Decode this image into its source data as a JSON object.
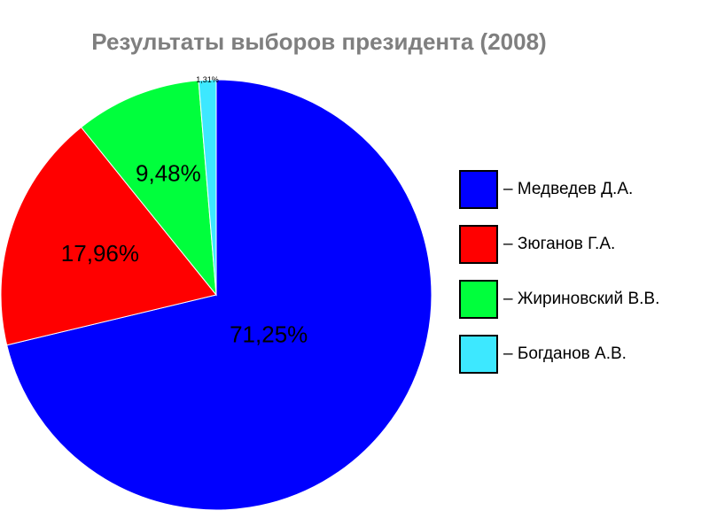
{
  "chart_data": {
    "type": "pie",
    "title": "Результаты выборов президента (2008)",
    "slices": [
      {
        "name": "Медведев Д.А.",
        "value": 71.25,
        "label": "71,25%",
        "color": "#0000ff"
      },
      {
        "name": "Зюганов Г.А.",
        "value": 17.96,
        "label": "17,96%",
        "color": "#ff0000"
      },
      {
        "name": "Жириновский В.В.",
        "value": 9.48,
        "label": "9,48%",
        "color": "#00ff3c"
      },
      {
        "name": "Богданов А.В.",
        "value": 1.31,
        "label": "1,31%",
        "color": "#3de8ff"
      }
    ],
    "legend": {
      "position": "right",
      "prefix": "– ",
      "labels": [
        "– Медведев Д.А.",
        "– Зюганов Г.А.",
        "– Жириновский В.В.",
        "– Богданов А.В."
      ]
    }
  }
}
